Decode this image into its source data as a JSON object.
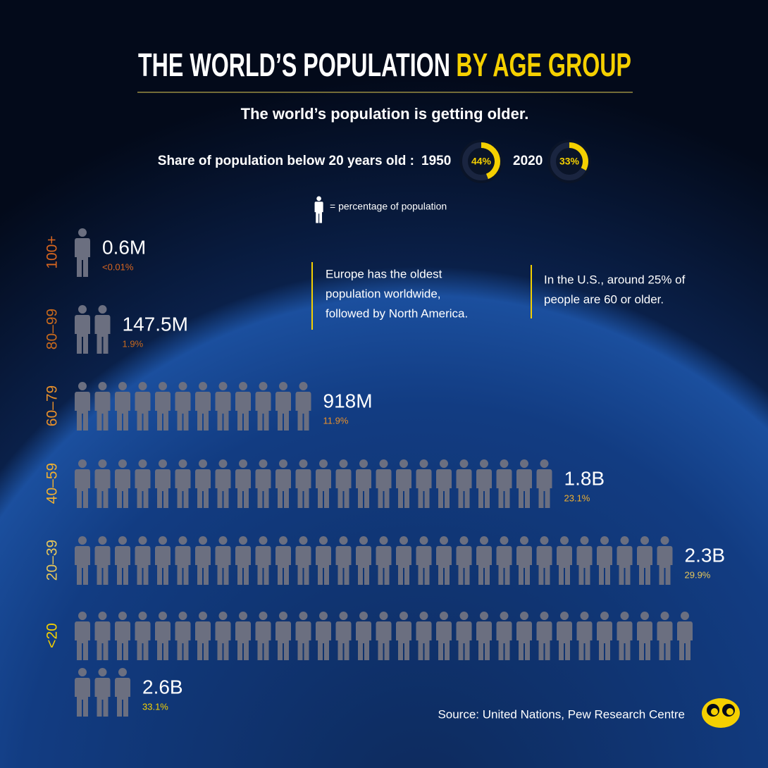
{
  "title": "THE WORLD’S POPULATION",
  "title_highlight": "BY AGE GROUP",
  "subtitle": "The world’s population is getting older.",
  "share": {
    "label": "Share of population below 20 years old :",
    "years": [
      "1950",
      "2020"
    ],
    "values": [
      44,
      33
    ],
    "value_labels": [
      "44%",
      "33%"
    ],
    "color": "#f5d000"
  },
  "legend": "= percentage of population",
  "annotations": [
    {
      "lines": [
        "Europe has the oldest",
        "population worldwide,",
        "followed by North America."
      ]
    },
    {
      "lines": [
        "In the U.S., around 25% of",
        "people are 60 or older."
      ]
    }
  ],
  "source": "Source: United Nations, Pew Research Centre",
  "chart_data": {
    "type": "pictogram",
    "categories": [
      "100+",
      "80–99",
      "60–79",
      "40–59",
      "20–39",
      "<20"
    ],
    "values": [
      0.01,
      1.9,
      11.9,
      23.1,
      29.9,
      33.1
    ],
    "value_labels": [
      "<0.01%",
      "1.9%",
      "11.9%",
      "23.1%",
      "29.9%",
      "33.1%"
    ],
    "population": [
      600000,
      147500000,
      918000000,
      1800000000,
      2300000000,
      2600000000
    ],
    "population_labels": [
      "0.6M",
      "147.5M",
      "918M",
      "1.8B",
      "2.3B",
      "2.6B"
    ],
    "colors": [
      "#d9661f",
      "#c96a1c",
      "#e8902a",
      "#f0b030",
      "#e6c65a",
      "#f5d000"
    ],
    "empty_color": "#6b6f80"
  }
}
